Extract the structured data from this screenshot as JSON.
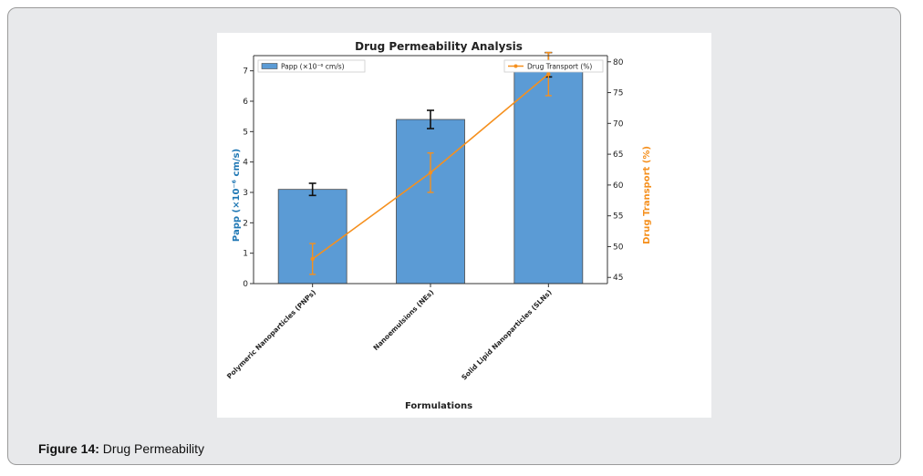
{
  "figure": {
    "caption_label": "Figure 14:",
    "caption_text": "Drug Permeability"
  },
  "colors": {
    "bar": "#5b9bd5",
    "bar_edge": "#4a4a4a",
    "line": "#f5901e",
    "left_axis_label": "#1f77b4",
    "right_axis_label": "#f5901e"
  },
  "chart_data": {
    "type": "bar",
    "title": "Drug Permeability Analysis",
    "xlabel": "Formulations",
    "ylabel": "Papp (×10⁻⁶ cm/s)",
    "y2label": "Drug Transport (%)",
    "categories": [
      "Polymeric Nanoparticles (PNPs)",
      "Nanoemulsions (NEs)",
      "Solid Lipid Nanoparticles (SLNs)"
    ],
    "ylim": [
      0,
      7.5
    ],
    "y2lim": [
      44,
      81
    ],
    "yticks": [
      0,
      1,
      2,
      3,
      4,
      5,
      6,
      7
    ],
    "y2ticks": [
      45,
      50,
      55,
      60,
      65,
      70,
      75,
      80
    ],
    "series": [
      {
        "name": "Papp (×10⁻⁶ cm/s)",
        "kind": "bar",
        "axis": "left",
        "values": [
          3.1,
          5.4,
          7.2
        ],
        "errors": [
          0.2,
          0.3,
          0.4
        ]
      },
      {
        "name": "Drug Transport (%)",
        "kind": "line",
        "axis": "right",
        "values": [
          48,
          62,
          78
        ],
        "errors": [
          2.5,
          3.2,
          3.5
        ]
      }
    ],
    "legend_left": "upper-left",
    "legend_right": "upper-right",
    "grid": false
  }
}
